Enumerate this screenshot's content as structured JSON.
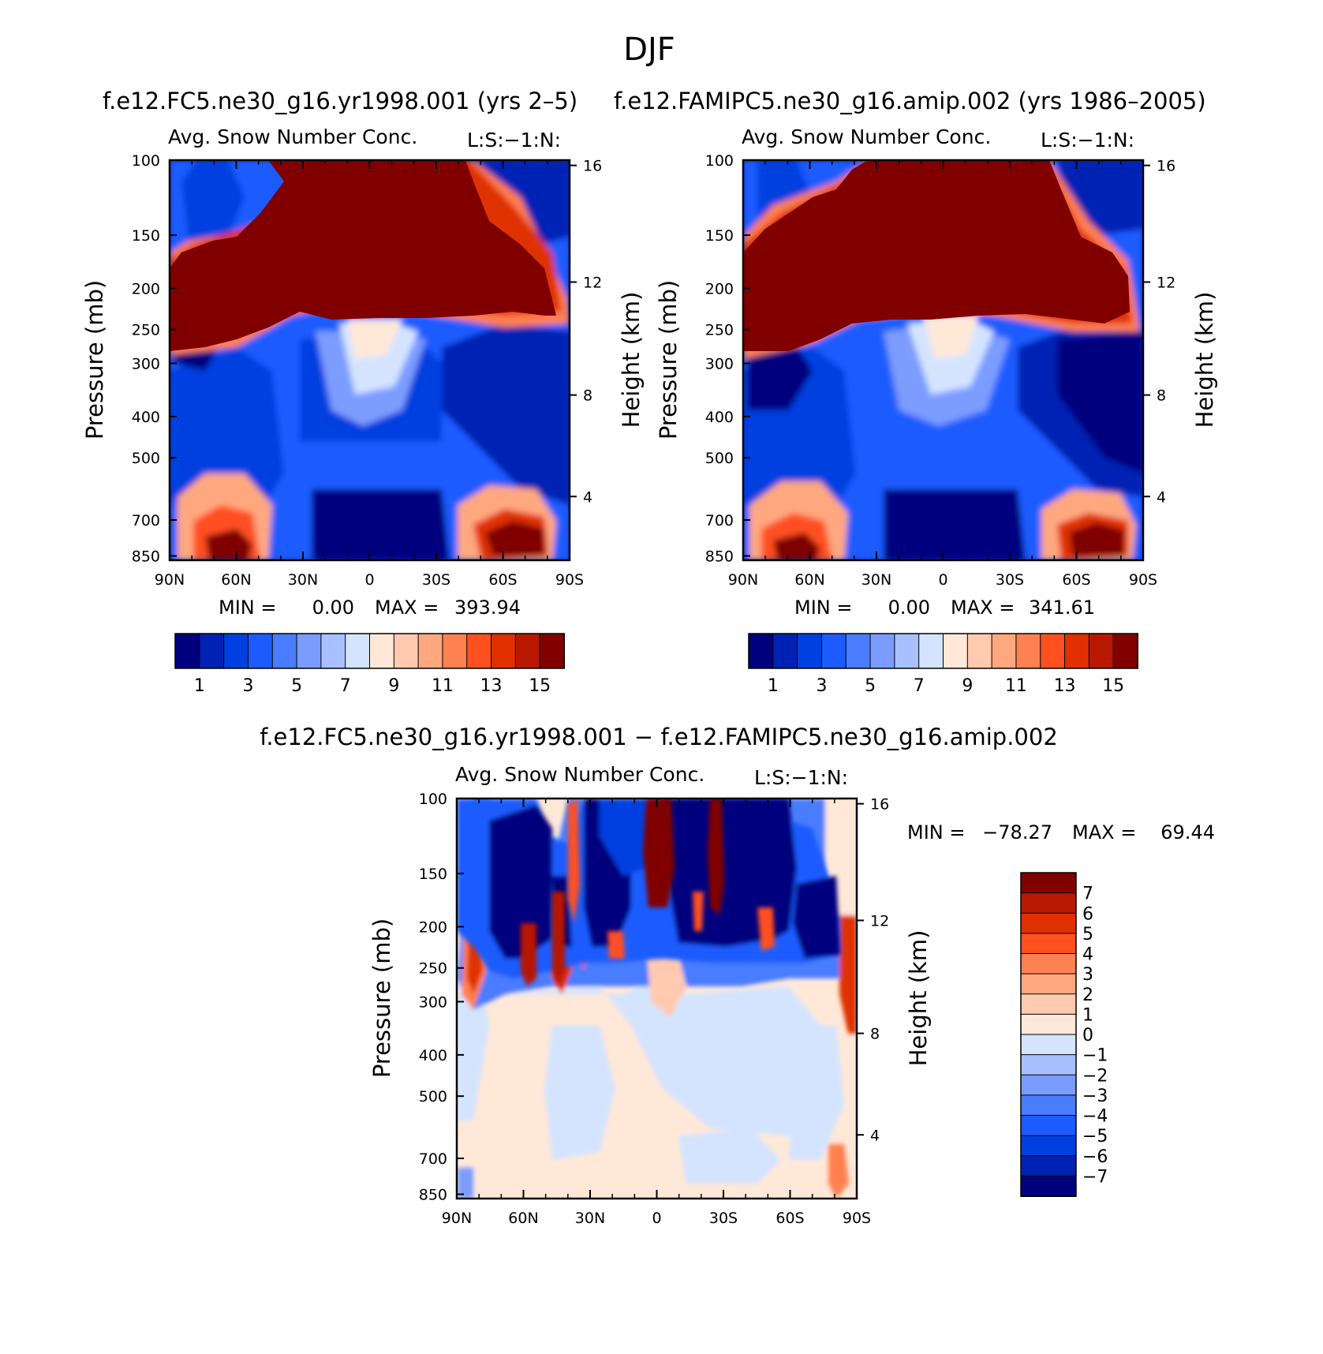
{
  "figure": {
    "title": "DJF"
  },
  "colors": {
    "abs_palette": [
      "#00007f",
      "#0022b4",
      "#0040e0",
      "#1c5cff",
      "#4a7cff",
      "#7b9cff",
      "#a8c0ff",
      "#d4e4ff",
      "#ffe8d8",
      "#ffcab0",
      "#ffa880",
      "#ff8050",
      "#ff5020",
      "#e03000",
      "#b81800",
      "#800000"
    ],
    "diff_palette": [
      "#00007f",
      "#0022b4",
      "#0040e0",
      "#1c5cff",
      "#4a7cff",
      "#7b9cff",
      "#a8c0ff",
      "#d4e4ff",
      "#ffe8d8",
      "#ffcab0",
      "#ffa880",
      "#ff8050",
      "#ff5020",
      "#e03000",
      "#b81800",
      "#800000"
    ]
  },
  "chart_data": [
    {
      "type": "heatmap",
      "panel": "top-left",
      "case_title": "f.e12.FC5.ne30_g16.yr1998.001 (yrs 2–5)",
      "title": "Avg. Snow Number Conc.",
      "units": "L:S:−1:N:",
      "ylabel": "Pressure (mb)",
      "y2label": "Height (km)",
      "x_ticks": [
        "90N",
        "60N",
        "30N",
        "0",
        "30S",
        "60S",
        "90S"
      ],
      "y_ticks": [
        "100",
        "150",
        "200",
        "250",
        "300",
        "400",
        "500",
        "700",
        "850"
      ],
      "y2_ticks": [
        "16",
        "12",
        "8",
        "4"
      ],
      "ylim_mb": [
        870,
        100
      ],
      "min_label": "MIN =",
      "min_value": "0.00",
      "max_label": "MAX =",
      "max_value": "393.94",
      "colorbar_labels": [
        "1",
        "3",
        "5",
        "7",
        "9",
        "11",
        "13",
        "15"
      ],
      "colorbar_orientation": "horizontal-below"
    },
    {
      "type": "heatmap",
      "panel": "top-right",
      "case_title": "f.e12.FAMIPC5.ne30_g16.amip.002 (yrs 1986–2005)",
      "title": "Avg. Snow Number Conc.",
      "units": "L:S:−1:N:",
      "ylabel": "Pressure (mb)",
      "y2label": "Height (km)",
      "x_ticks": [
        "90N",
        "60N",
        "30N",
        "0",
        "30S",
        "60S",
        "90S"
      ],
      "y_ticks": [
        "100",
        "150",
        "200",
        "250",
        "300",
        "400",
        "500",
        "700",
        "850"
      ],
      "y2_ticks": [
        "16",
        "12",
        "8",
        "4"
      ],
      "ylim_mb": [
        870,
        100
      ],
      "min_label": "MIN =",
      "min_value": "0.00",
      "max_label": "MAX =",
      "max_value": "341.61",
      "colorbar_labels": [
        "1",
        "3",
        "5",
        "7",
        "9",
        "11",
        "13",
        "15"
      ],
      "colorbar_orientation": "horizontal-below"
    },
    {
      "type": "heatmap",
      "panel": "bottom",
      "case_title": "f.e12.FC5.ne30_g16.yr1998.001 − f.e12.FAMIPC5.ne30_g16.amip.002",
      "title": "Avg. Snow Number Conc.",
      "units": "L:S:−1:N:",
      "ylabel": "Pressure (mb)",
      "y2label": "Height (km)",
      "x_ticks": [
        "90N",
        "60N",
        "30N",
        "0",
        "30S",
        "60S",
        "90S"
      ],
      "y_ticks": [
        "100",
        "150",
        "200",
        "250",
        "300",
        "400",
        "500",
        "700",
        "850"
      ],
      "y2_ticks": [
        "16",
        "12",
        "8",
        "4"
      ],
      "ylim_mb": [
        870,
        100
      ],
      "min_label": "MIN =",
      "min_value": "−78.27",
      "max_label": "MAX =",
      "max_value": "69.44",
      "colorbar_labels": [
        "7",
        "6",
        "5",
        "4",
        "3",
        "2",
        "1",
        "0",
        "−1",
        "−2",
        "−3",
        "−4",
        "−5",
        "−6",
        "−7"
      ],
      "colorbar_orientation": "vertical-right"
    }
  ]
}
